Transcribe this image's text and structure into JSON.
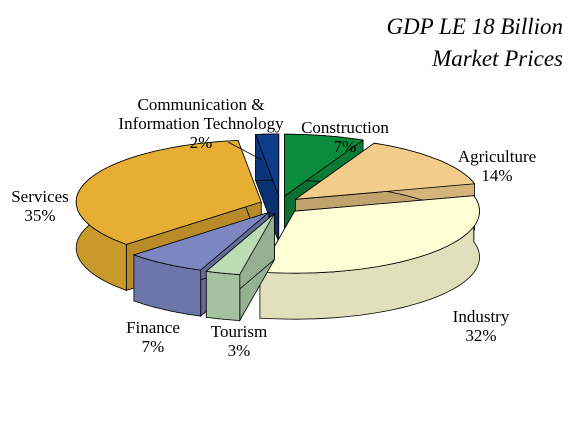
{
  "chart_data": {
    "type": "pie3d",
    "title": "GDP LE 18 Billion",
    "subtitle": "Market Prices",
    "categories": [
      "Construction",
      "Agriculture",
      "Industry",
      "Tourism",
      "Finance",
      "Services",
      "Communication & Information Technology"
    ],
    "values": [
      7,
      14,
      32,
      3,
      7,
      35,
      2
    ],
    "value_labels": [
      "7%",
      "14%",
      "32%",
      "3%",
      "7%",
      "35%",
      "2%"
    ],
    "colors": [
      "#0b8c3c",
      "#f1cc8a",
      "#ffffd6",
      "#bcdcb6",
      "#7c86c0",
      "#e6ae32",
      "#0d3d8c"
    ]
  }
}
